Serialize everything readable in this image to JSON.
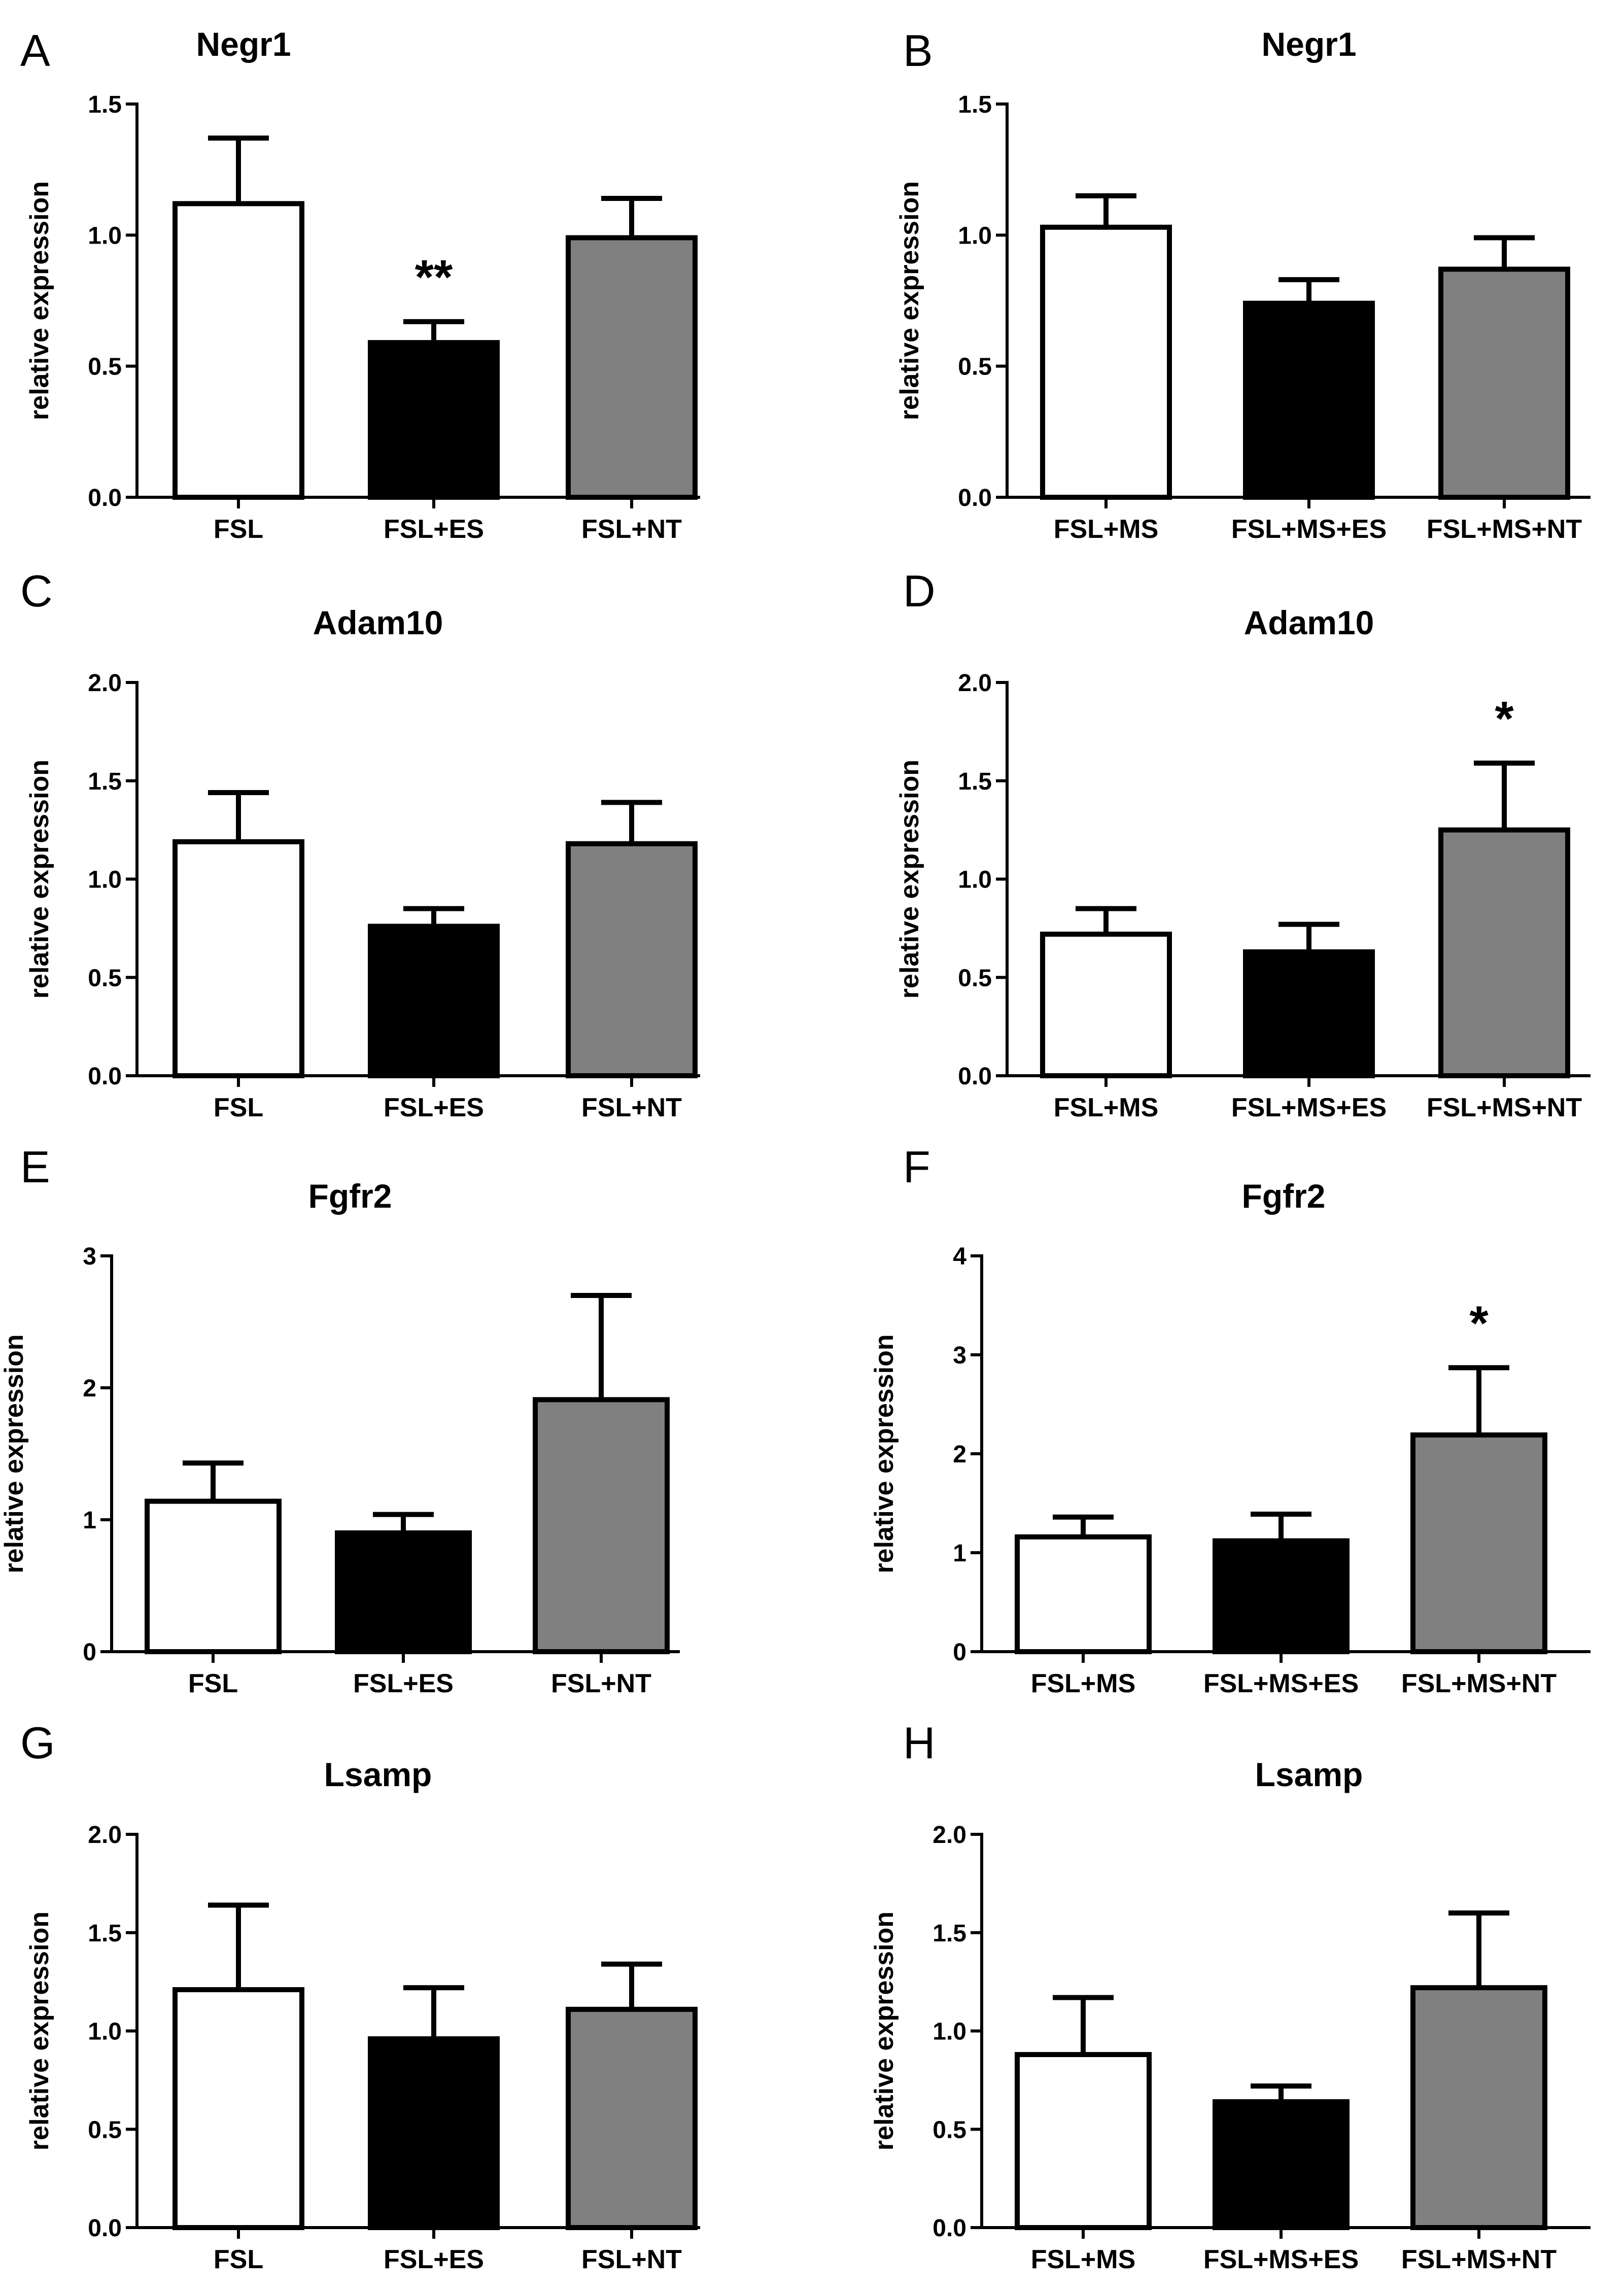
{
  "figure": {
    "ylabel": "relative expression"
  },
  "chart_data": [
    {
      "panel": "A",
      "type": "bar",
      "title": "Negr1",
      "ylabel": "relative expression",
      "categories": [
        "FSL",
        "FSL+ES",
        "FSL+NT"
      ],
      "values": [
        1.12,
        0.59,
        0.99
      ],
      "errors": [
        0.25,
        0.08,
        0.15
      ],
      "colors": [
        "#ffffff",
        "#000000",
        "#808080"
      ],
      "annotations": [
        "",
        "**",
        ""
      ],
      "ylim": [
        0,
        1.5
      ],
      "yticks": [
        0,
        0.5,
        1.0,
        1.5
      ],
      "ytick_labels": [
        "0.0",
        "0.5",
        "1.0",
        "1.5"
      ]
    },
    {
      "panel": "B",
      "type": "bar",
      "title": "Negr1",
      "ylabel": "relative expression",
      "categories": [
        "FSL+MS",
        "FSL+MS+ES",
        "FSL+MS+NT"
      ],
      "values": [
        1.03,
        0.74,
        0.87
      ],
      "errors": [
        0.12,
        0.09,
        0.12
      ],
      "colors": [
        "#ffffff",
        "#000000",
        "#808080"
      ],
      "annotations": [
        "",
        "",
        ""
      ],
      "ylim": [
        0,
        1.5
      ],
      "yticks": [
        0,
        0.5,
        1.0,
        1.5
      ],
      "ytick_labels": [
        "0.0",
        "0.5",
        "1.0",
        "1.5"
      ]
    },
    {
      "panel": "C",
      "type": "bar",
      "title": "Adam10",
      "ylabel": "relative expression",
      "categories": [
        "FSL",
        "FSL+ES",
        "FSL+NT"
      ],
      "values": [
        1.19,
        0.76,
        1.18
      ],
      "errors": [
        0.25,
        0.09,
        0.21
      ],
      "colors": [
        "#ffffff",
        "#000000",
        "#808080"
      ],
      "annotations": [
        "",
        "",
        ""
      ],
      "ylim": [
        0,
        2.0
      ],
      "yticks": [
        0,
        0.5,
        1.0,
        1.5,
        2.0
      ],
      "ytick_labels": [
        "0.0",
        "0.5",
        "1.0",
        "1.5",
        "2.0"
      ]
    },
    {
      "panel": "D",
      "type": "bar",
      "title": "Adam10",
      "ylabel": "relative expression",
      "categories": [
        "FSL+MS",
        "FSL+MS+ES",
        "FSL+MS+NT"
      ],
      "values": [
        0.72,
        0.63,
        1.25
      ],
      "errors": [
        0.13,
        0.14,
        0.34
      ],
      "colors": [
        "#ffffff",
        "#000000",
        "#808080"
      ],
      "annotations": [
        "",
        "",
        "*"
      ],
      "ylim": [
        0,
        2.0
      ],
      "yticks": [
        0,
        0.5,
        1.0,
        1.5,
        2.0
      ],
      "ytick_labels": [
        "0.0",
        "0.5",
        "1.0",
        "1.5",
        "2.0"
      ]
    },
    {
      "panel": "E",
      "type": "bar",
      "title": "Fgfr2",
      "ylabel": "relative expression",
      "categories": [
        "FSL",
        "FSL+ES",
        "FSL+NT"
      ],
      "values": [
        1.14,
        0.9,
        1.91
      ],
      "errors": [
        0.29,
        0.14,
        0.79
      ],
      "colors": [
        "#ffffff",
        "#000000",
        "#808080"
      ],
      "annotations": [
        "",
        "",
        ""
      ],
      "ylim": [
        0,
        3
      ],
      "yticks": [
        0,
        1,
        2,
        3
      ],
      "ytick_labels": [
        "0",
        "1",
        "2",
        "3"
      ]
    },
    {
      "panel": "F",
      "type": "bar",
      "title": "Fgfr2",
      "ylabel": "relative expression",
      "categories": [
        "FSL+MS",
        "FSL+MS+ES",
        "FSL+MS+NT"
      ],
      "values": [
        1.16,
        1.12,
        2.19
      ],
      "errors": [
        0.2,
        0.27,
        0.68
      ],
      "colors": [
        "#ffffff",
        "#000000",
        "#808080"
      ],
      "annotations": [
        "",
        "",
        "*"
      ],
      "ylim": [
        0,
        4
      ],
      "yticks": [
        0,
        1,
        2,
        3,
        4
      ],
      "ytick_labels": [
        "0",
        "1",
        "2",
        "3",
        "4"
      ]
    },
    {
      "panel": "G",
      "type": "bar",
      "title": "Lsamp",
      "ylabel": "relative expression",
      "categories": [
        "FSL",
        "FSL+ES",
        "FSL+NT"
      ],
      "values": [
        1.21,
        0.96,
        1.11
      ],
      "errors": [
        0.43,
        0.26,
        0.23
      ],
      "colors": [
        "#ffffff",
        "#000000",
        "#808080"
      ],
      "annotations": [
        "",
        "",
        ""
      ],
      "ylim": [
        0,
        2.0
      ],
      "yticks": [
        0,
        0.5,
        1.0,
        1.5,
        2.0
      ],
      "ytick_labels": [
        "0.0",
        "0.5",
        "1.0",
        "1.5",
        "2.0"
      ]
    },
    {
      "panel": "H",
      "type": "bar",
      "title": "Lsamp",
      "ylabel": "relative expression",
      "categories": [
        "FSL+MS",
        "FSL+MS+ES",
        "FSL+MS+NT"
      ],
      "values": [
        0.88,
        0.64,
        1.22
      ],
      "errors": [
        0.29,
        0.08,
        0.38
      ],
      "colors": [
        "#ffffff",
        "#000000",
        "#808080"
      ],
      "annotations": [
        "",
        "",
        ""
      ],
      "ylim": [
        0,
        2.0
      ],
      "yticks": [
        0,
        0.5,
        1.0,
        1.5,
        2.0
      ],
      "ytick_labels": [
        "0.0",
        "0.5",
        "1.0",
        "1.5",
        "2.0"
      ]
    }
  ]
}
